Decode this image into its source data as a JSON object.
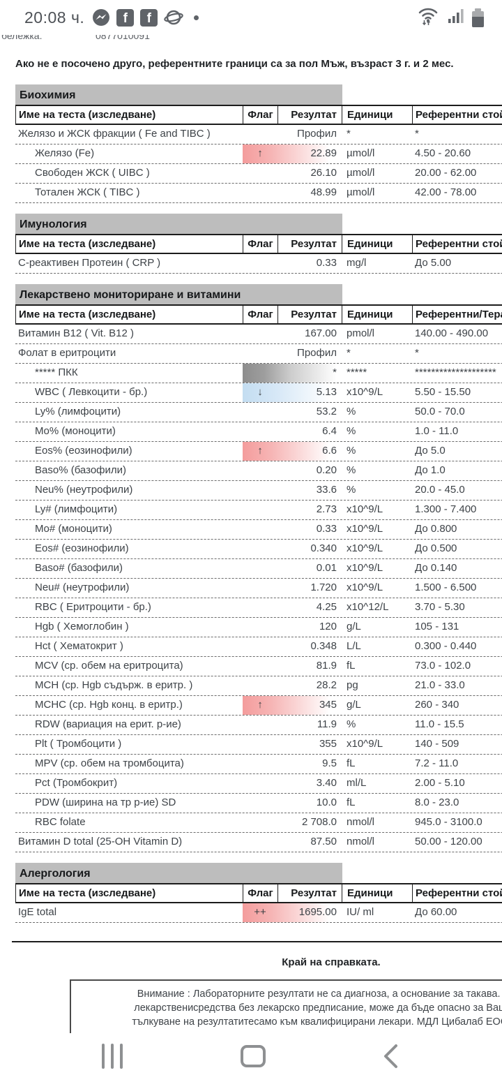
{
  "colors": {
    "section_bar": "#bdbdbd",
    "flag_high": "#f49c9c",
    "flag_low": "#c3ddf1",
    "profile_block": "#8d8d8d",
    "icon_gray": "#5f6368",
    "nav_gray": "#8e9092"
  },
  "status_bar": {
    "time": "20:08 ч.",
    "app_icons": [
      "messenger-icon",
      "facebook-icon",
      "facebook-icon",
      "internet-browser-icon"
    ],
    "more_notifications_dot": "•",
    "system_icons": [
      "wifi-icon",
      "signal-icon",
      "battery-icon"
    ]
  },
  "document": {
    "clipped_note": {
      "label_fragment": "бележка:",
      "number_fragment": "0877010091"
    },
    "intro": "Ако не е посочено друго, референтните граници са за пол Мъж, възраст 3 г. и 2 мес.",
    "columns": {
      "name": "Име на теста (изследване)",
      "flag": "Флаг",
      "result": "Резултат",
      "units": "Единици"
    },
    "sections": [
      {
        "title": "Биохимия",
        "reference_label": "Референтни стойно",
        "rows": [
          {
            "name": "Желязо и ЖСК фракции ( Fe and TIBC )",
            "indent": false,
            "flag": "",
            "highlight": "",
            "result": "Профил",
            "units": "*",
            "reference": "*"
          },
          {
            "name": "Желязо (Fe)",
            "indent": true,
            "flag": "↑",
            "highlight": "red",
            "result": "22.89",
            "units": "µmol/l",
            "reference": "4.50 - 20.60"
          },
          {
            "name": "Свободен ЖСК ( UIBC )",
            "indent": true,
            "flag": "",
            "highlight": "",
            "result": "26.10",
            "units": "µmol/l",
            "reference": "20.00 - 62.00"
          },
          {
            "name": "Тотален ЖСК ( TIBC )",
            "indent": true,
            "flag": "",
            "highlight": "",
            "result": "48.99",
            "units": "µmol/l",
            "reference": "42.00 - 78.00"
          }
        ]
      },
      {
        "title": "Имунология",
        "reference_label": "Референтни стойно",
        "rows": [
          {
            "name": "С-реактивен Протеин ( CRP )",
            "indent": false,
            "flag": "",
            "highlight": "",
            "result": "0.33",
            "units": "mg/l",
            "reference": "До 5.00"
          }
        ]
      },
      {
        "title": "Лекарствено мониториране и витамини",
        "reference_label": "Референтни/Терапе",
        "rows": [
          {
            "name": "Витамин B12 ( Vit. B12 )",
            "indent": false,
            "flag": "",
            "highlight": "",
            "result": "167.00",
            "units": "pmol/l",
            "reference": "140.00 - 490.00"
          },
          {
            "name": "Фолат в еритроцити",
            "indent": false,
            "flag": "",
            "highlight": "",
            "result": "Профил",
            "units": "*",
            "reference": "*"
          },
          {
            "name": "***** ПКК",
            "indent": true,
            "flag": "",
            "highlight": "gray",
            "result": "*",
            "units": "*****",
            "reference": "********************"
          },
          {
            "name": "WBC ( Левкоцити - бр.)",
            "indent": true,
            "flag": "↓",
            "highlight": "blue",
            "result": "5.13",
            "units": "x10^9/L",
            "reference": "5.50 - 15.50"
          },
          {
            "name": "Ly% (лимфоцити)",
            "indent": true,
            "flag": "",
            "highlight": "",
            "result": "53.2",
            "units": "%",
            "reference": "50.0 - 70.0"
          },
          {
            "name": "Mo% (моноцити)",
            "indent": true,
            "flag": "",
            "highlight": "",
            "result": "6.4",
            "units": "%",
            "reference": "1.0 - 11.0"
          },
          {
            "name": "Eos% (еозинофили)",
            "indent": true,
            "flag": "↑",
            "highlight": "red",
            "result": "6.6",
            "units": "%",
            "reference": "До 5.0"
          },
          {
            "name": "Baso% (базофили)",
            "indent": true,
            "flag": "",
            "highlight": "",
            "result": "0.20",
            "units": "%",
            "reference": "До 1.0"
          },
          {
            "name": "Neu% (неутрофили)",
            "indent": true,
            "flag": "",
            "highlight": "",
            "result": "33.6",
            "units": "%",
            "reference": "20.0 - 45.0"
          },
          {
            "name": "Ly# (лимфоцити)",
            "indent": true,
            "flag": "",
            "highlight": "",
            "result": "2.73",
            "units": "x10^9/L",
            "reference": "1.300 - 7.400"
          },
          {
            "name": "Mo# (моноцити)",
            "indent": true,
            "flag": "",
            "highlight": "",
            "result": "0.33",
            "units": "x10^9/L",
            "reference": "До 0.800"
          },
          {
            "name": "Eos# (еозинофили)",
            "indent": true,
            "flag": "",
            "highlight": "",
            "result": "0.340",
            "units": "x10^9/L",
            "reference": "До 0.500"
          },
          {
            "name": "Baso# (базофили)",
            "indent": true,
            "flag": "",
            "highlight": "",
            "result": "0.01",
            "units": "x10^9/L",
            "reference": "До 0.140"
          },
          {
            "name": "Neu# (неутрофили)",
            "indent": true,
            "flag": "",
            "highlight": "",
            "result": "1.720",
            "units": "x10^9/L",
            "reference": "1.500 - 6.500"
          },
          {
            "name": "RBC ( Еритроцити - бр.)",
            "indent": true,
            "flag": "",
            "highlight": "",
            "result": "4.25",
            "units": "x10^12/L",
            "reference": "3.70 - 5.30"
          },
          {
            "name": "Hgb ( Хемоглобин )",
            "indent": true,
            "flag": "",
            "highlight": "",
            "result": "120",
            "units": "g/L",
            "reference": "105 - 131"
          },
          {
            "name": "Hct ( Хематокрит )",
            "indent": true,
            "flag": "",
            "highlight": "",
            "result": "0.348",
            "units": "L/L",
            "reference": "0.300 - 0.440"
          },
          {
            "name": "MCV (ср. обем на еритроцита)",
            "indent": true,
            "flag": "",
            "highlight": "",
            "result": "81.9",
            "units": "fL",
            "reference": "73.0 - 102.0"
          },
          {
            "name": "MCH (ср. Hgb съдърж. в еритр. )",
            "indent": true,
            "flag": "",
            "highlight": "",
            "result": "28.2",
            "units": "pg",
            "reference": "21.0 - 33.0"
          },
          {
            "name": "MCHC (ср. Hgb конц. в еритр.)",
            "indent": true,
            "flag": "↑",
            "highlight": "red",
            "result": "345",
            "units": "g/L",
            "reference": "260 - 340"
          },
          {
            "name": "RDW (вариация на ерит. р-ие)",
            "indent": true,
            "flag": "",
            "highlight": "",
            "result": "11.9",
            "units": "%",
            "reference": "11.0 - 15.5"
          },
          {
            "name": "Plt ( Тромбоцити )",
            "indent": true,
            "flag": "",
            "highlight": "",
            "result": "355",
            "units": "x10^9/L",
            "reference": "140 - 509"
          },
          {
            "name": "MPV (ср. обем на тромбоцита)",
            "indent": true,
            "flag": "",
            "highlight": "",
            "result": "9.5",
            "units": "fL",
            "reference": "7.2 - 11.0"
          },
          {
            "name": "Pct (Тромбокрит)",
            "indent": true,
            "flag": "",
            "highlight": "",
            "result": "3.40",
            "units": "ml/L",
            "reference": "2.00 - 5.10"
          },
          {
            "name": "PDW (ширина на тр р-ие) SD",
            "indent": true,
            "flag": "",
            "highlight": "",
            "result": "10.0",
            "units": "fL",
            "reference": "8.0 - 23.0"
          },
          {
            "name": "RBC folate",
            "indent": true,
            "flag": "",
            "highlight": "",
            "result": "2 708.0",
            "units": "nmol/l",
            "reference": "945.0 - 3100.0"
          },
          {
            "name": "Витамин D total (25-OH Vitamin D)",
            "indent": false,
            "flag": "",
            "highlight": "",
            "result": "87.50",
            "units": "nmol/l",
            "reference": "50.00 - 120.00"
          }
        ]
      },
      {
        "title": "Алергология",
        "reference_label": "Референтни стойно",
        "rows": [
          {
            "name": "IgE total",
            "indent": false,
            "flag": "++",
            "highlight": "red",
            "result": "1695.00",
            "units": "IU/ ml",
            "reference": "До 60.00"
          }
        ]
      }
    ],
    "footer": {
      "end_text": "Край на справката.",
      "warning_lines": [
        "Внимание : Лабораторните резултати не са диагноза, а основание за такава. Приемането на ка",
        "лекарственисредства без лекарско предписание, може да бъде опасно за Вашето здраве. Моля,",
        "тълкуване на резултатитесамо към квалифицирани лекари. МДЛ Цибалаб ЕООД препоръчва вин"
      ]
    }
  },
  "nav_bar": {
    "buttons": [
      "recents",
      "home",
      "back"
    ]
  }
}
